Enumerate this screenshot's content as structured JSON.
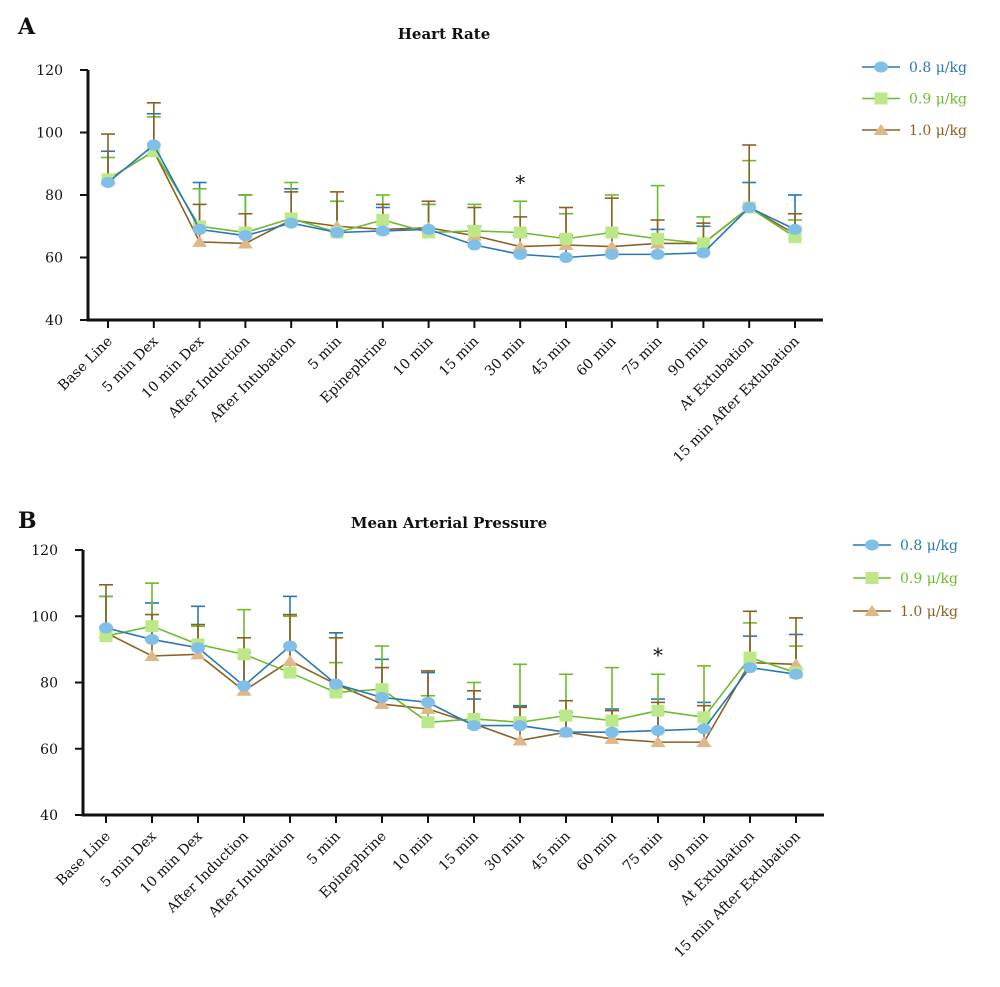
{
  "chart_data": [
    {
      "panel": "A",
      "type": "line",
      "title": "Heart Rate",
      "xlabel": "",
      "ylabel": "",
      "ylim": [
        40,
        120
      ],
      "yticks": [
        "40",
        "60",
        "80",
        "100",
        "120"
      ],
      "categories": [
        "Base Line",
        "5 min Dex",
        "10 min Dex",
        "After Induction",
        "After Intubation",
        "5 min",
        "Epinephrine",
        "10 min",
        "15 min",
        "30 min",
        "45 min",
        "60 min",
        "75 min",
        "90 min",
        "At Extubation",
        "15 min After Extubation"
      ],
      "grid": false,
      "legend_position": "top-right",
      "annotations": [
        {
          "text": "*",
          "category": "30 min"
        }
      ],
      "series": [
        {
          "name": "0.8 μ/kg",
          "color": "#2878b5",
          "marker_color": "#7fbfe8",
          "marker": "circle",
          "values": [
            84,
            96,
            69,
            67,
            71,
            68,
            68.5,
            69,
            64,
            61,
            60,
            61,
            61,
            61.5,
            76,
            69
          ],
          "sd_upper": [
            94,
            106,
            84,
            80,
            82,
            78,
            76,
            77,
            70,
            67,
            67,
            68,
            69,
            70,
            84,
            80
          ]
        },
        {
          "name": "0.9 μ/kg",
          "color": "#6cbb2c",
          "marker_color": "#bde88a",
          "marker": "square",
          "values": [
            85,
            94,
            70,
            68,
            72.5,
            68,
            72,
            68,
            68.5,
            68,
            66,
            68,
            66,
            64.5,
            76,
            66.5
          ],
          "sd_upper": [
            92,
            105,
            82,
            80,
            84,
            78,
            80,
            77,
            77,
            78,
            74,
            80,
            83,
            73,
            91,
            72
          ]
        },
        {
          "name": "1.0 μ/kg",
          "color": "#8c6023",
          "marker_color": "#e0b787",
          "marker": "triangle",
          "values": [
            85,
            94,
            65,
            64.5,
            72,
            70,
            69,
            69.5,
            67,
            63.5,
            64,
            63.5,
            64.5,
            64.5,
            76,
            67.5
          ],
          "sd_upper": [
            99.5,
            109.5,
            77,
            74,
            81,
            81,
            77,
            78,
            76,
            73,
            76,
            79,
            72,
            71,
            96,
            74
          ]
        }
      ]
    },
    {
      "panel": "B",
      "type": "line",
      "title": "Mean Arterial Pressure",
      "xlabel": "",
      "ylabel": "",
      "ylim": [
        40,
        120
      ],
      "yticks": [
        "40",
        "60",
        "80",
        "100",
        "120"
      ],
      "categories": [
        "Base Line",
        "5 min Dex",
        "10 min Dex",
        "After Induction",
        "After Intubation",
        "5 min",
        "Epinephrine",
        "10 min",
        "15 min",
        "30 min",
        "45 min",
        "60 min",
        "75 min",
        "90 min",
        "At Extubation",
        "15 min After Extubation"
      ],
      "grid": false,
      "legend_position": "top-right",
      "annotations": [
        {
          "text": "*",
          "category": "75 min"
        }
      ],
      "series": [
        {
          "name": "0.8 μ/kg",
          "color": "#2878b5",
          "marker_color": "#7fbfe8",
          "marker": "circle",
          "values": [
            96.5,
            93,
            90.5,
            79,
            91,
            79.5,
            75.5,
            74,
            67,
            67,
            65,
            65,
            65.5,
            66,
            84.5,
            82.5
          ],
          "sd_upper": [
            106,
            104,
            103,
            89,
            106,
            95,
            87,
            83,
            75,
            73,
            71,
            72,
            75,
            74,
            94,
            94.5
          ]
        },
        {
          "name": "0.9 μ/kg",
          "color": "#6cbb2c",
          "marker_color": "#bde88a",
          "marker": "square",
          "values": [
            94,
            97,
            91.5,
            88.5,
            83,
            77,
            78,
            68,
            69,
            68,
            70,
            68.5,
            71.5,
            69.5,
            87.5,
            83
          ],
          "sd_upper": [
            106,
            110,
            97,
            102,
            100,
            86,
            91,
            76,
            80,
            85.5,
            82.5,
            84.5,
            82.5,
            85,
            98,
            91
          ]
        },
        {
          "name": "1.0 μ/kg",
          "color": "#8c6023",
          "marker_color": "#e0b787",
          "marker": "triangle",
          "values": [
            95,
            88,
            88.5,
            77.5,
            86.5,
            79.5,
            73.5,
            72,
            67.5,
            62.5,
            65,
            63,
            62,
            62,
            86,
            85.5
          ],
          "sd_upper": [
            109.5,
            100.5,
            97.5,
            93.5,
            100.5,
            93.5,
            84.5,
            83.5,
            77.5,
            72.5,
            74.5,
            71.5,
            74,
            73,
            101.5,
            99.5
          ]
        }
      ]
    }
  ]
}
